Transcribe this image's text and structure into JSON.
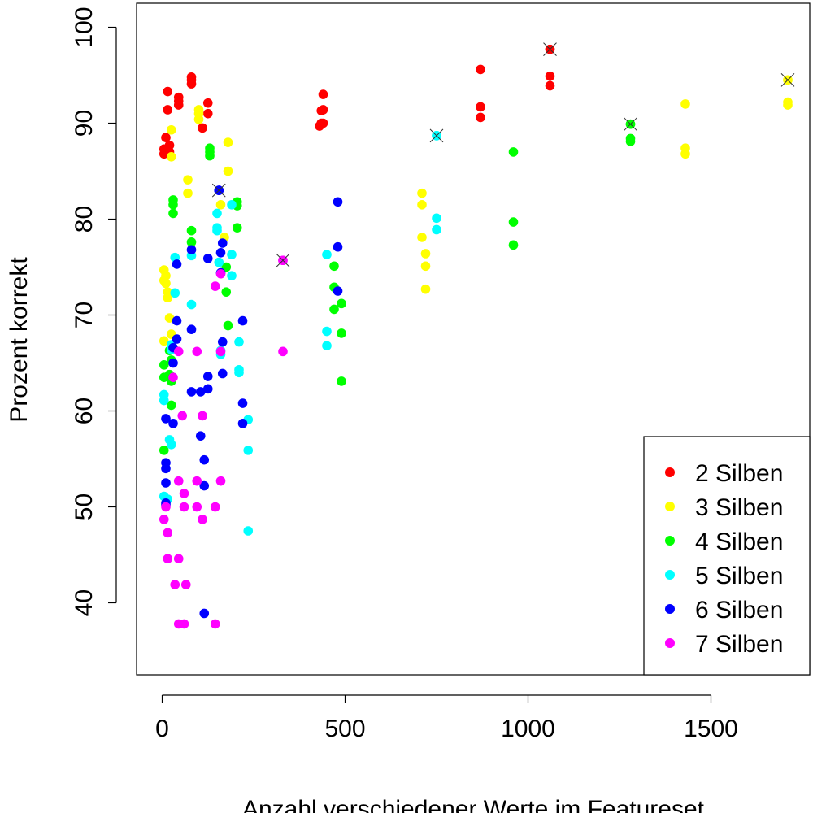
{
  "chart_data": {
    "type": "scatter",
    "xlabel": "Anzahl verschiedener Werte im Featureset",
    "ylabel": "Prozent korrekt",
    "xlim": [
      -70,
      1770
    ],
    "ylim": [
      32.5,
      102.5
    ],
    "xticks": [
      0,
      500,
      1000,
      1500
    ],
    "yticks": [
      40,
      50,
      60,
      70,
      80,
      90,
      100
    ],
    "xtick_labels": [
      "0",
      "500",
      "1000",
      "1500"
    ],
    "ytick_labels": [
      "40",
      "50",
      "60",
      "70",
      "80",
      "90",
      "100"
    ],
    "grid": false,
    "legend_position": "bottom-right",
    "series": [
      {
        "name": "2 Silben",
        "color": "#ff0000",
        "points": [
          [
            5,
            87.3
          ],
          [
            5,
            86.8
          ],
          [
            10,
            88.5
          ],
          [
            15,
            93.3
          ],
          [
            15,
            91.4
          ],
          [
            20,
            87.7
          ],
          [
            20,
            87.0
          ],
          [
            45,
            92.7
          ],
          [
            45,
            92.3
          ],
          [
            45,
            91.9
          ],
          [
            80,
            94.8
          ],
          [
            80,
            94.5
          ],
          [
            80,
            94.1
          ],
          [
            110,
            89.5
          ],
          [
            125,
            92.1
          ],
          [
            125,
            91.0
          ],
          [
            430,
            89.7
          ],
          [
            435,
            90.0
          ],
          [
            435,
            91.3
          ],
          [
            440,
            93.0
          ],
          [
            440,
            91.4
          ],
          [
            440,
            90.0
          ],
          [
            870,
            95.6
          ],
          [
            870,
            91.7
          ],
          [
            870,
            90.6
          ],
          [
            1060,
            97.7
          ],
          [
            1060,
            94.9
          ],
          [
            1060,
            93.9
          ]
        ],
        "marked": [
          [
            1060,
            97.7
          ]
        ]
      },
      {
        "name": "3 Silben",
        "color": "#ffff00",
        "points": [
          [
            5,
            74.7
          ],
          [
            5,
            73.6
          ],
          [
            10,
            74.1
          ],
          [
            10,
            73.3
          ],
          [
            15,
            72.4
          ],
          [
            15,
            71.8
          ],
          [
            20,
            69.7
          ],
          [
            25,
            68.0
          ],
          [
            5,
            67.3
          ],
          [
            25,
            89.3
          ],
          [
            25,
            86.5
          ],
          [
            70,
            84.1
          ],
          [
            70,
            82.7
          ],
          [
            100,
            91.4
          ],
          [
            100,
            91.0
          ],
          [
            100,
            90.4
          ],
          [
            160,
            81.5
          ],
          [
            170,
            78.1
          ],
          [
            180,
            88.0
          ],
          [
            180,
            85.0
          ],
          [
            710,
            82.7
          ],
          [
            710,
            81.5
          ],
          [
            710,
            78.1
          ],
          [
            720,
            76.4
          ],
          [
            720,
            75.1
          ],
          [
            720,
            72.7
          ],
          [
            1430,
            92.0
          ],
          [
            1430,
            87.4
          ],
          [
            1430,
            86.8
          ],
          [
            1710,
            94.5
          ],
          [
            1710,
            92.2
          ],
          [
            1710,
            91.9
          ]
        ],
        "marked": [
          [
            1710,
            94.5
          ]
        ]
      },
      {
        "name": "4 Silben",
        "color": "#00ff00",
        "points": [
          [
            5,
            64.8
          ],
          [
            5,
            63.5
          ],
          [
            5,
            55.9
          ],
          [
            20,
            66.3
          ],
          [
            20,
            63.8
          ],
          [
            25,
            65.3
          ],
          [
            25,
            63.1
          ],
          [
            25,
            60.6
          ],
          [
            30,
            82.0
          ],
          [
            30,
            81.5
          ],
          [
            30,
            80.6
          ],
          [
            80,
            78.8
          ],
          [
            80,
            77.6
          ],
          [
            130,
            87.4
          ],
          [
            130,
            87.0
          ],
          [
            130,
            86.6
          ],
          [
            175,
            75.0
          ],
          [
            175,
            72.4
          ],
          [
            180,
            68.9
          ],
          [
            205,
            81.8
          ],
          [
            205,
            81.4
          ],
          [
            205,
            79.1
          ],
          [
            470,
            75.1
          ],
          [
            470,
            72.9
          ],
          [
            470,
            70.6
          ],
          [
            490,
            71.2
          ],
          [
            490,
            68.1
          ],
          [
            490,
            63.1
          ],
          [
            960,
            87.0
          ],
          [
            960,
            79.7
          ],
          [
            960,
            77.3
          ],
          [
            1280,
            89.9
          ],
          [
            1280,
            88.4
          ],
          [
            1280,
            88.1
          ]
        ],
        "marked": [
          [
            1280,
            89.9
          ]
        ]
      },
      {
        "name": "5 Silben",
        "color": "#00ffff",
        "points": [
          [
            5,
            61.7
          ],
          [
            5,
            61.1
          ],
          [
            5,
            51.1
          ],
          [
            15,
            50.8
          ],
          [
            20,
            57.0
          ],
          [
            25,
            56.5
          ],
          [
            25,
            66.9
          ],
          [
            25,
            66.4
          ],
          [
            35,
            76.0
          ],
          [
            35,
            72.3
          ],
          [
            80,
            76.2
          ],
          [
            80,
            71.1
          ],
          [
            150,
            80.6
          ],
          [
            150,
            79.1
          ],
          [
            150,
            78.8
          ],
          [
            155,
            75.5
          ],
          [
            160,
            74.4
          ],
          [
            160,
            66.3
          ],
          [
            160,
            65.9
          ],
          [
            190,
            81.5
          ],
          [
            190,
            76.3
          ],
          [
            190,
            74.1
          ],
          [
            210,
            67.2
          ],
          [
            210,
            64.3
          ],
          [
            210,
            64.0
          ],
          [
            235,
            59.1
          ],
          [
            235,
            55.9
          ],
          [
            235,
            47.5
          ],
          [
            450,
            76.3
          ],
          [
            450,
            68.3
          ],
          [
            450,
            66.8
          ],
          [
            750,
            88.7
          ],
          [
            750,
            80.1
          ],
          [
            750,
            78.9
          ]
        ],
        "marked": [
          [
            750,
            88.7
          ]
        ]
      },
      {
        "name": "6 Silben",
        "color": "#0000ff",
        "points": [
          [
            10,
            59.2
          ],
          [
            10,
            54.6
          ],
          [
            10,
            54.0
          ],
          [
            10,
            52.5
          ],
          [
            10,
            50.4
          ],
          [
            10,
            50.2
          ],
          [
            30,
            66.6
          ],
          [
            30,
            65.0
          ],
          [
            30,
            58.7
          ],
          [
            40,
            75.3
          ],
          [
            40,
            69.4
          ],
          [
            40,
            67.5
          ],
          [
            80,
            76.8
          ],
          [
            80,
            68.5
          ],
          [
            80,
            62.0
          ],
          [
            105,
            62.0
          ],
          [
            105,
            57.4
          ],
          [
            115,
            54.9
          ],
          [
            115,
            52.2
          ],
          [
            115,
            38.9
          ],
          [
            125,
            75.9
          ],
          [
            125,
            63.6
          ],
          [
            125,
            62.3
          ],
          [
            155,
            83.0
          ],
          [
            160,
            76.5
          ],
          [
            160,
            74.4
          ],
          [
            165,
            77.5
          ],
          [
            165,
            67.2
          ],
          [
            165,
            63.9
          ],
          [
            220,
            69.4
          ],
          [
            220,
            60.8
          ],
          [
            220,
            58.7
          ],
          [
            480,
            81.8
          ],
          [
            480,
            77.1
          ],
          [
            480,
            72.5
          ]
        ],
        "marked": [
          [
            155,
            83.0
          ]
        ]
      },
      {
        "name": "7 Silben",
        "color": "#ff00ff",
        "points": [
          [
            5,
            48.7
          ],
          [
            10,
            50.0
          ],
          [
            15,
            47.3
          ],
          [
            15,
            44.6
          ],
          [
            30,
            63.5
          ],
          [
            35,
            41.9
          ],
          [
            45,
            66.2
          ],
          [
            45,
            52.7
          ],
          [
            45,
            44.6
          ],
          [
            45,
            37.8
          ],
          [
            55,
            59.5
          ],
          [
            60,
            51.4
          ],
          [
            60,
            50.0
          ],
          [
            60,
            37.8
          ],
          [
            65,
            41.9
          ],
          [
            95,
            66.2
          ],
          [
            95,
            52.7
          ],
          [
            95,
            50.0
          ],
          [
            110,
            59.5
          ],
          [
            110,
            48.7
          ],
          [
            145,
            73.0
          ],
          [
            145,
            50.0
          ],
          [
            145,
            37.8
          ],
          [
            160,
            74.3
          ],
          [
            160,
            66.2
          ],
          [
            160,
            52.7
          ],
          [
            330,
            75.7
          ],
          [
            330,
            66.2
          ]
        ],
        "marked": [
          [
            330,
            75.7
          ]
        ]
      }
    ]
  }
}
